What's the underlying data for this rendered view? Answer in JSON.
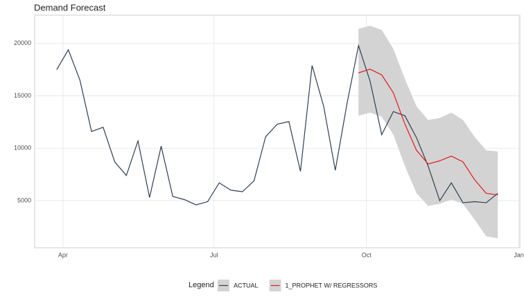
{
  "chart_data": {
    "type": "line",
    "title": "Demand Forecast",
    "x": [
      0,
      1,
      2,
      3,
      4,
      5,
      6,
      7,
      8,
      9,
      10,
      11,
      12,
      13,
      14,
      15,
      16,
      17,
      18,
      19,
      20,
      21,
      22,
      23,
      24,
      25,
      26,
      27,
      28,
      29,
      30,
      31,
      32,
      33,
      34,
      35,
      36,
      37,
      38
    ],
    "xlim": [
      -1.9,
      39.9
    ],
    "xticks": [
      {
        "value": 0.54,
        "label": "Apr"
      },
      {
        "value": 13.55,
        "label": "Jul"
      },
      {
        "value": 26.69,
        "label": "Oct"
      },
      {
        "value": 39.82,
        "label": "Jan"
      }
    ],
    "ylim": [
      500,
      22700
    ],
    "yticks": [
      5000,
      10000,
      15000,
      20000
    ],
    "grid": true,
    "legend_title": "Legend",
    "legend_position": "bottom",
    "series": [
      {
        "name": "ACTUAL",
        "color": "#2c3e50",
        "values": [
          17500,
          19400,
          16500,
          11600,
          12000,
          8700,
          7400,
          10700,
          5300,
          10200,
          5400,
          5100,
          4600,
          4900,
          6700,
          6000,
          5850,
          6900,
          11100,
          12300,
          12550,
          7800,
          17900,
          14000,
          7900,
          14200,
          19800,
          16400,
          11300,
          13500,
          13100,
          11000,
          8300,
          5000,
          6700,
          4800,
          4900,
          4800,
          5700
        ]
      },
      {
        "name": "1_PROPHET W/ REGRESSORS",
        "color": "#e31a1c",
        "band_color": "#d3d3d3",
        "values": [
          null,
          null,
          null,
          null,
          null,
          null,
          null,
          null,
          null,
          null,
          null,
          null,
          null,
          null,
          null,
          null,
          null,
          null,
          null,
          null,
          null,
          null,
          null,
          null,
          null,
          null,
          17200,
          17550,
          17000,
          15300,
          12300,
          9800,
          8500,
          8800,
          9250,
          8700,
          7000,
          5700,
          5550
        ],
        "upper": [
          null,
          null,
          null,
          null,
          null,
          null,
          null,
          null,
          null,
          null,
          null,
          null,
          null,
          null,
          null,
          null,
          null,
          null,
          null,
          null,
          null,
          null,
          null,
          null,
          null,
          null,
          21400,
          21700,
          21300,
          19500,
          16600,
          14000,
          12700,
          12900,
          13400,
          12700,
          11100,
          9800,
          9700
        ],
        "lower": [
          null,
          null,
          null,
          null,
          null,
          null,
          null,
          null,
          null,
          null,
          null,
          null,
          null,
          null,
          null,
          null,
          null,
          null,
          null,
          null,
          null,
          null,
          null,
          null,
          null,
          null,
          13100,
          13400,
          13000,
          11300,
          8300,
          5700,
          4500,
          4700,
          5100,
          4700,
          3200,
          1600,
          1400
        ]
      }
    ]
  }
}
